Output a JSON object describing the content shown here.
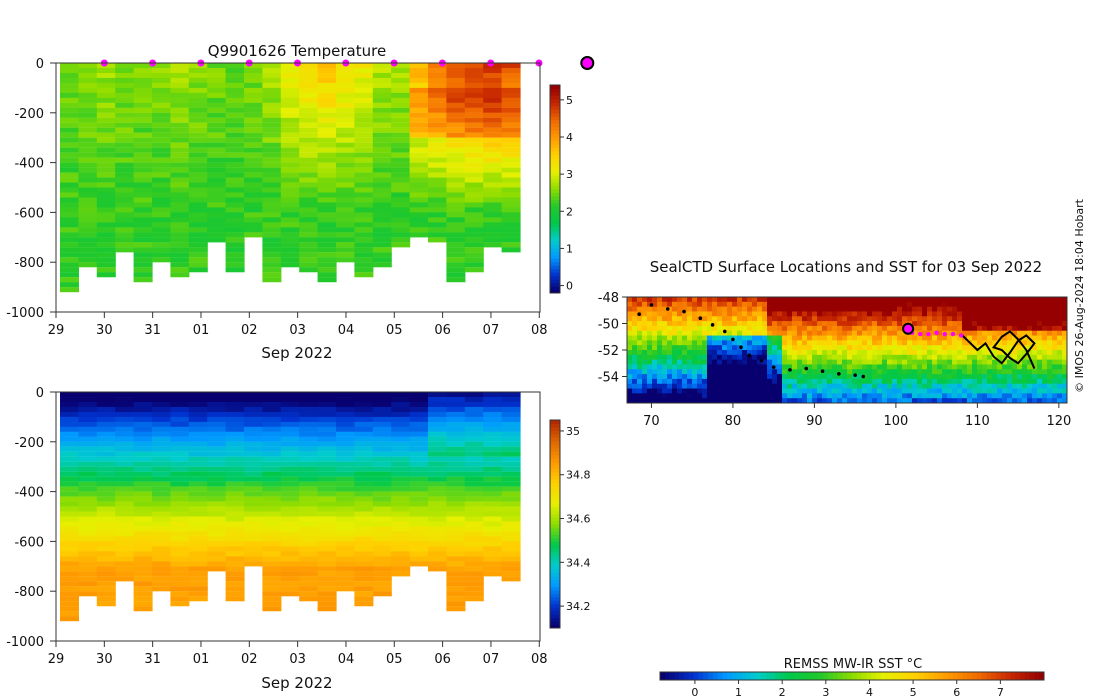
{
  "colors": {
    "temperature_scale": [
      "#08006e",
      "#0033d0",
      "#0099ff",
      "#00cccc",
      "#00c84a",
      "#22c82a",
      "#8cdc00",
      "#e6f000",
      "#ffd000",
      "#ff9a00",
      "#f06a00",
      "#c82800",
      "#960000"
    ],
    "sst_scale": [
      "#08006e",
      "#0033d0",
      "#0099ff",
      "#00cccc",
      "#00c84a",
      "#22c82a",
      "#8cdc00",
      "#e6f000",
      "#ffd000",
      "#ff9a00",
      "#f06a00",
      "#c82800",
      "#960000"
    ],
    "salinity_scale": [
      "#08006e",
      "#0033d0",
      "#0099ff",
      "#00cccc",
      "#00c84a",
      "#8cdc00",
      "#e6f000",
      "#ffd000",
      "#ff9a00",
      "#e06a00",
      "#b42a00"
    ],
    "profile_marker": "#ff00ff",
    "track": "#000000",
    "land": "#ffffff"
  },
  "credit": "© IMOS 26-Aug-2024 18:04 Hobart",
  "chart_data": [
    {
      "type": "heatmap",
      "title": "Q9901626  Temperature",
      "xlabel": "Sep 2022",
      "ylabel": "",
      "x_tick_labels": [
        "29",
        "30",
        "31",
        "01",
        "02",
        "03",
        "04",
        "05",
        "06",
        "07",
        "08"
      ],
      "y_ticks": [
        0,
        -200,
        -400,
        -600,
        -800,
        -1000
      ],
      "ylim": [
        -1000,
        0
      ],
      "colorbar": {
        "ticks": [
          0,
          1,
          2,
          3,
          4,
          5
        ],
        "range": [
          -0.2,
          5.4
        ]
      },
      "profile_markers_at_x": [
        30,
        31,
        32,
        33,
        34,
        35,
        36,
        37,
        38,
        39
      ],
      "latest_profile_at_x": 40,
      "profile_bottom_depth": [
        910,
        820,
        860,
        760,
        880,
        790,
        860,
        840,
        720,
        830,
        700,
        880,
        810,
        830,
        880,
        790,
        860,
        820,
        730,
        700,
        710,
        880,
        830,
        730,
        760
      ],
      "surface_value_by_profile": [
        2.5,
        2.6,
        2.7,
        2.6,
        2.5,
        2.6,
        2.7,
        2.6,
        2.5,
        2.4,
        2.5,
        2.8,
        3.2,
        3.5,
        3.6,
        3.4,
        3.2,
        2.8,
        2.7,
        3.8,
        4.2,
        4.6,
        4.8,
        4.9,
        4.7
      ],
      "deep_value": 2.2
    },
    {
      "type": "heatmap",
      "title": "",
      "xlabel": "Sep 2022",
      "ylabel": "",
      "x_tick_labels": [
        "29",
        "30",
        "31",
        "01",
        "02",
        "03",
        "04",
        "05",
        "06",
        "07",
        "08"
      ],
      "y_ticks": [
        0,
        -200,
        -400,
        -600,
        -800,
        -1000
      ],
      "ylim": [
        -1000,
        0
      ],
      "colorbar": {
        "ticks": [
          34.2,
          34.4,
          34.6,
          34.8,
          35
        ],
        "range": [
          34.1,
          35.05
        ]
      },
      "profile_bottom_depth": [
        910,
        820,
        860,
        760,
        880,
        790,
        860,
        840,
        720,
        830,
        700,
        880,
        810,
        830,
        880,
        790,
        860,
        820,
        730,
        700,
        710,
        880,
        830,
        730,
        760
      ],
      "surface_value": 34.05,
      "deep_value": 34.85
    },
    {
      "type": "heatmap",
      "title": "SealCTD Surface Locations and SST for 03 Sep 2022",
      "xlabel": "",
      "ylabel": "",
      "x_ticks": [
        70,
        80,
        90,
        100,
        110,
        120
      ],
      "xlim": [
        67,
        121
      ],
      "y_ticks": [
        -48,
        -50,
        -52,
        -54
      ],
      "ylim": [
        -56,
        -48
      ],
      "colorbar": {
        "label": "REMSS MW-IR SST °C",
        "ticks": [
          0,
          1,
          2,
          3,
          4,
          5,
          6,
          7
        ],
        "range": [
          -0.8,
          8.0
        ]
      },
      "current_location": {
        "lon": 101.5,
        "lat": -50.4
      },
      "track_lon": [
        68.5,
        70,
        72,
        74,
        76,
        77.5,
        79,
        80,
        81,
        82,
        83.5,
        85,
        87,
        89,
        91,
        93,
        95,
        96
      ],
      "track_lat": [
        -49.3,
        -48.6,
        -48.9,
        -49.1,
        -49.6,
        -50.1,
        -50.6,
        -51.2,
        -51.8,
        -52.4,
        -52.8,
        -53.3,
        -53.5,
        -53.4,
        -53.6,
        -53.8,
        -53.9,
        -54.0
      ],
      "recent_lon": [
        102,
        103,
        104,
        105,
        106,
        107,
        108
      ],
      "recent_lat": [
        -50.7,
        -50.8,
        -50.8,
        -50.7,
        -50.8,
        -50.8,
        -50.9
      ],
      "east_lon": [
        108,
        109,
        110,
        111,
        112,
        113,
        114,
        115,
        116,
        117,
        116,
        115,
        114,
        113,
        112,
        113,
        114,
        115,
        116,
        117
      ],
      "east_lat": [
        -50.8,
        -51.4,
        -52.0,
        -51.5,
        -52.5,
        -53.0,
        -52.2,
        -51.3,
        -50.9,
        -51.5,
        -52.3,
        -53.0,
        -52.6,
        -52.0,
        -51.8,
        -51.0,
        -50.6,
        -51.2,
        -52.0,
        -53.4
      ]
    }
  ]
}
